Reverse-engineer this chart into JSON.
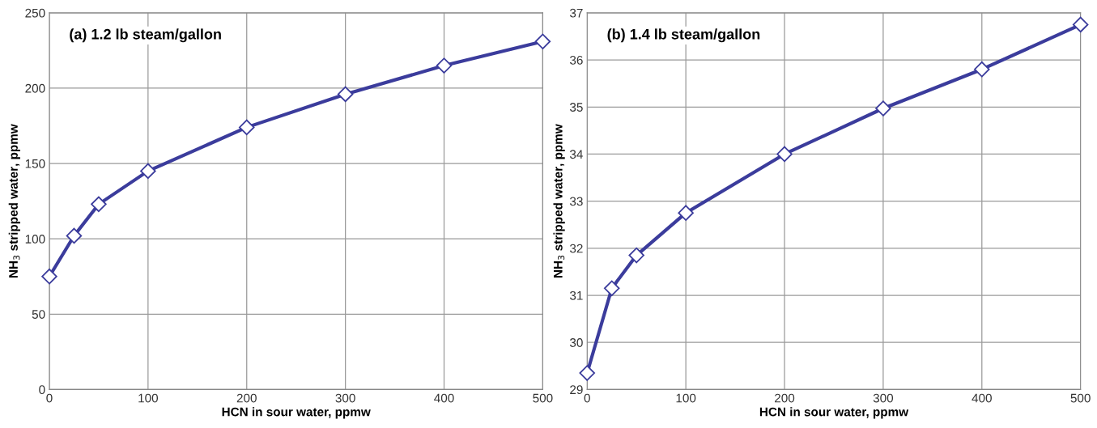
{
  "chart_data": [
    {
      "type": "line",
      "title": "(a) 1.2 lb steam/gallon",
      "xlabel": "HCN in sour water, ppmw",
      "ylabel": "NH$_{3}$ stripped water, ppmw",
      "x": [
        0,
        25,
        50,
        100,
        200,
        300,
        400,
        500
      ],
      "series": [
        {
          "color": "#3b3c9c",
          "values": [
            75,
            102,
            123,
            145,
            174,
            196,
            215,
            231
          ]
        }
      ],
      "xlim": [
        0,
        500
      ],
      "xticks": [
        0,
        100,
        200,
        300,
        400,
        500
      ],
      "ylim": [
        0,
        250
      ],
      "yticks": [
        0,
        50,
        100,
        150,
        200,
        250
      ],
      "grid": true,
      "marker": "diamond",
      "line_style": "solid"
    },
    {
      "type": "line",
      "title": "(b) 1.4 lb steam/gallon",
      "xlabel": "HCN in sour water, ppmw",
      "ylabel": "NH$_{3}$ stripped water, ppmw",
      "x": [
        0,
        25,
        50,
        100,
        200,
        300,
        400,
        500
      ],
      "series": [
        {
          "color": "#3b3c9c",
          "values": [
            29.35,
            31.15,
            31.85,
            32.75,
            34.0,
            34.97,
            35.8,
            36.75
          ]
        }
      ],
      "xlim": [
        0,
        500
      ],
      "xticks": [
        0,
        100,
        200,
        300,
        400,
        500
      ],
      "ylim": [
        29,
        37
      ],
      "yticks": [
        29,
        30,
        31,
        32,
        33,
        34,
        35,
        36,
        37
      ],
      "grid": true,
      "marker": "diamond",
      "line_style": "solid"
    }
  ]
}
